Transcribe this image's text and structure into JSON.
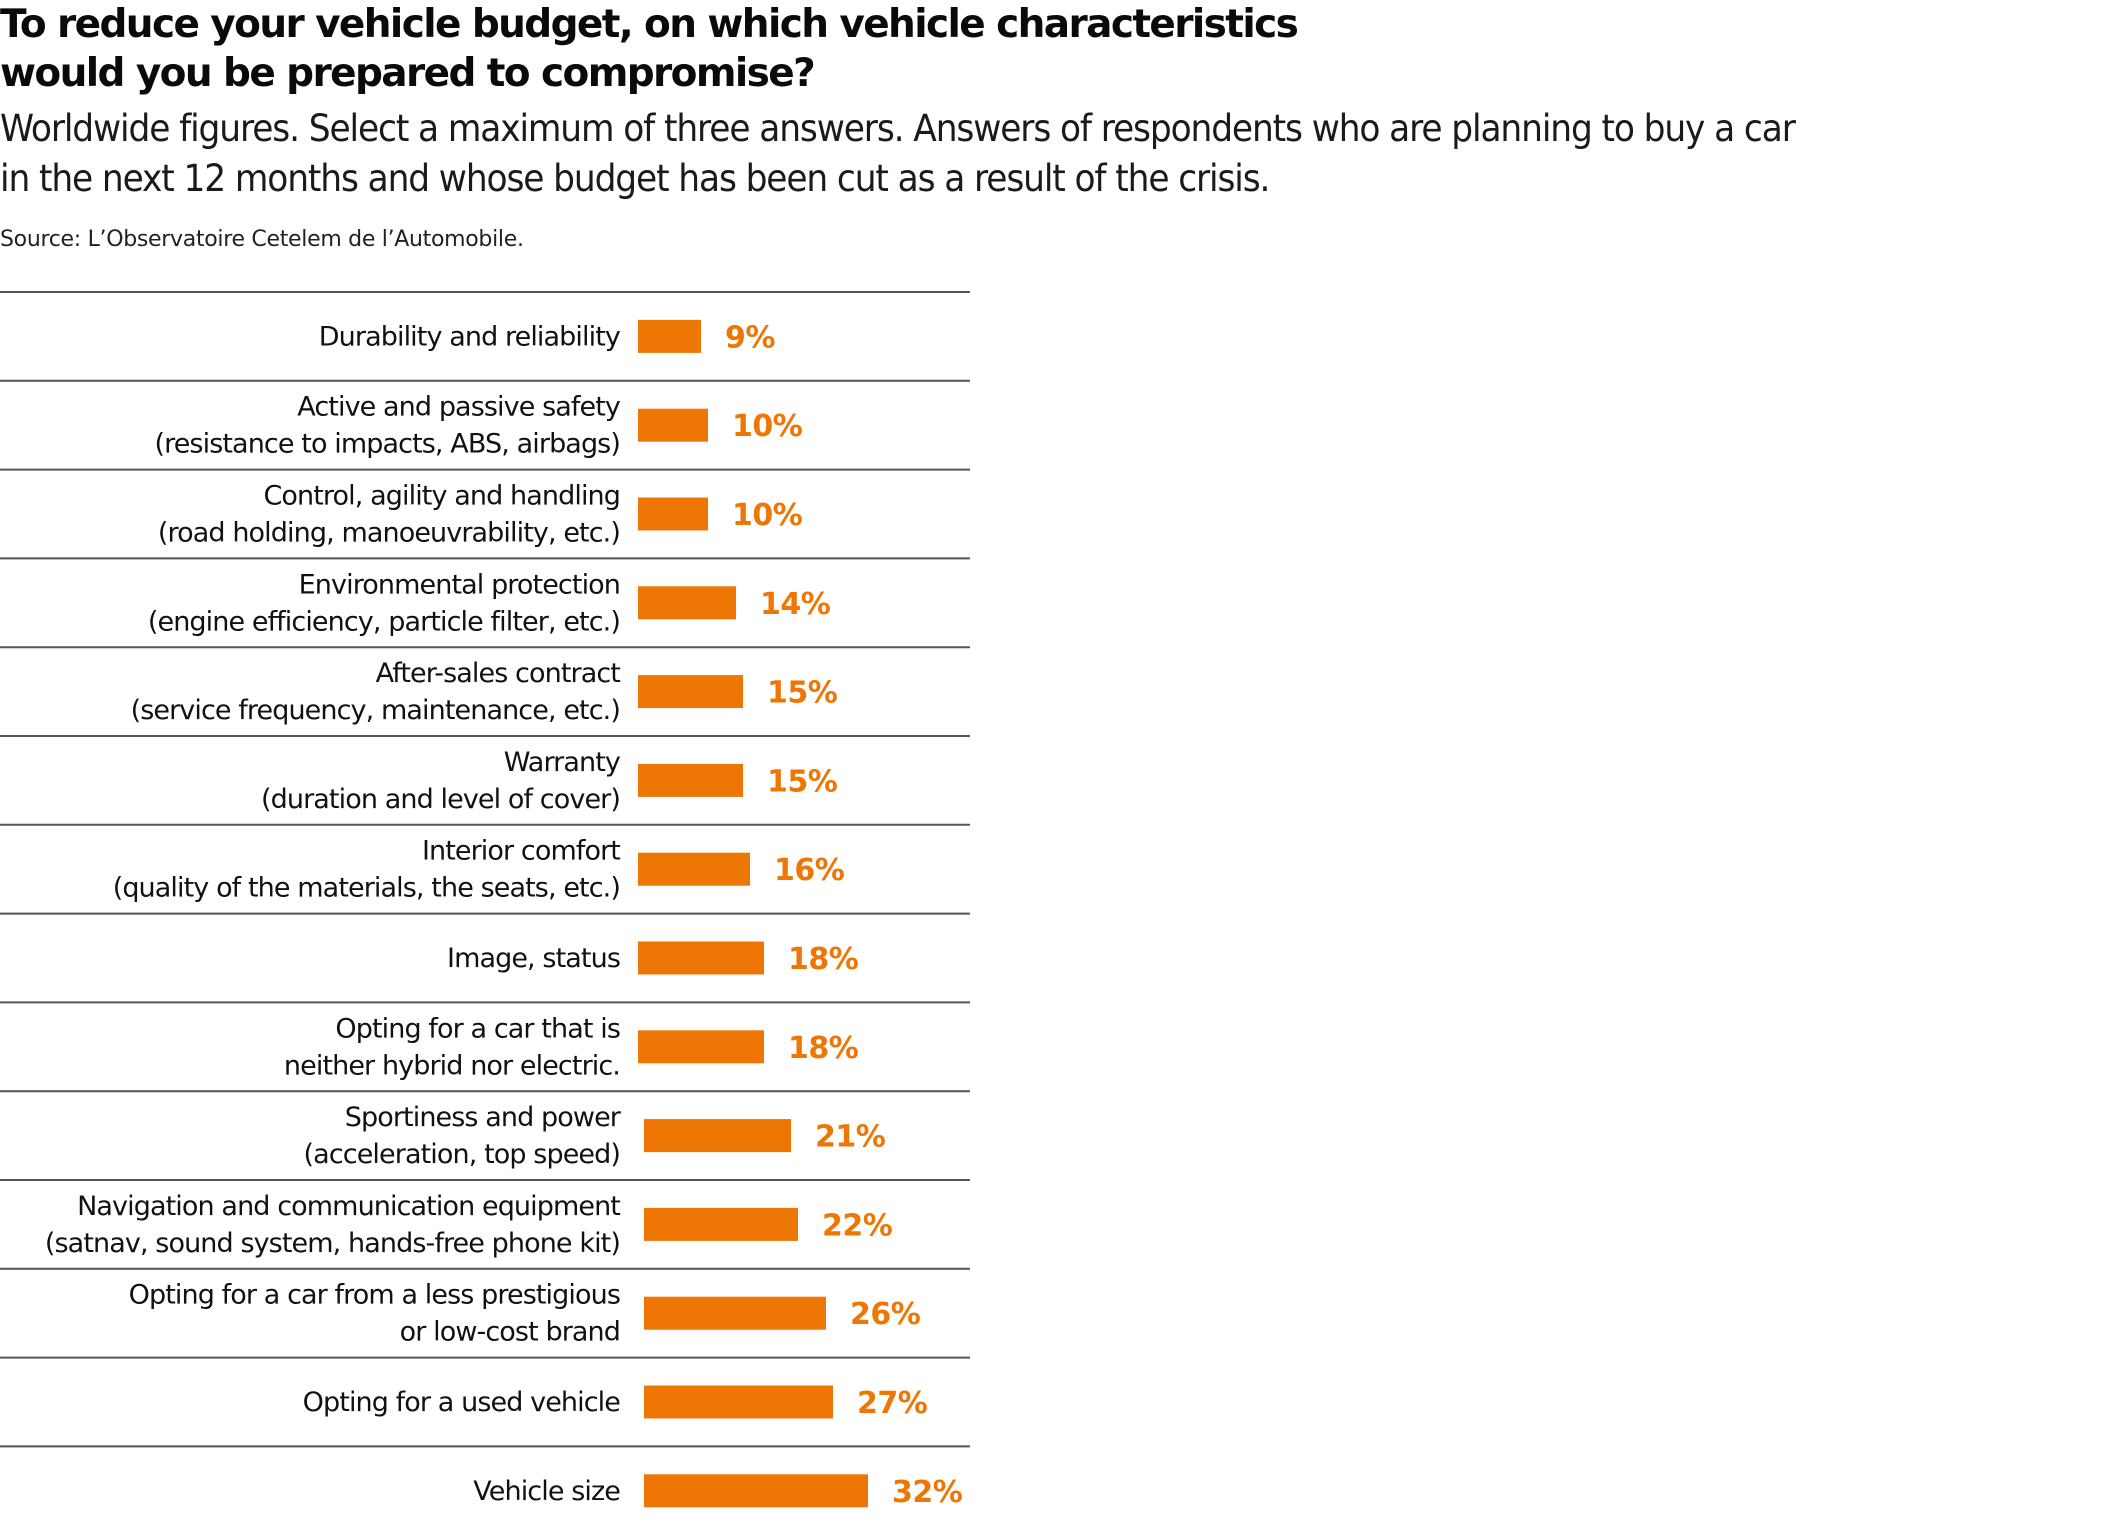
{
  "header": {
    "title_line1": "To reduce your vehicle budget, on which vehicle characteristics",
    "title_line2": "would you be prepared to compromise?",
    "subtitle_line1": "Worldwide figures. Select a maximum of three answers. Answers of respondents who are planning to buy a car",
    "subtitle_line2": "in the next 12 months and whose budget has been cut as a result of the crisis.",
    "source": "Source: L’Observatoire Cetelem de l’Automobile."
  },
  "colors": {
    "bar": "#ee7604",
    "value_text": "#ee7604",
    "rule": "#555555"
  },
  "chart_data": {
    "type": "bar",
    "orientation": "horizontal",
    "title": "To reduce your vehicle budget, on which vehicle characteristics would you be prepared to compromise?",
    "xlabel": "",
    "ylabel": "",
    "unit": "%",
    "grid": false,
    "legend": "none",
    "xlim": [
      0,
      32
    ],
    "categories": [
      [
        "Durability and reliability"
      ],
      [
        "Active and passive safety",
        "(resistance to impacts, ABS, airbags)"
      ],
      [
        "Control, agility and handling",
        "(road holding, manoeuvrability, etc.)"
      ],
      [
        "Environmental protection",
        "(engine efficiency, particle filter, etc.)"
      ],
      [
        "After-sales contract",
        "(service frequency, maintenance, etc.)"
      ],
      [
        "Warranty",
        "(duration and level of cover)"
      ],
      [
        "Interior comfort",
        "(quality of the materials, the seats, etc.)"
      ],
      [
        "Image, status"
      ],
      [
        "Opting for a car that is",
        "neither hybrid nor electric."
      ],
      [
        "Sportiness and power",
        "(acceleration, top speed)"
      ],
      [
        "Navigation and communication equipment",
        "(satnav, sound system, hands-free phone kit)"
      ],
      [
        "Opting for a car from a less prestigious",
        "or low-cost brand"
      ],
      [
        "Opting for a used vehicle"
      ],
      [
        "Vehicle size"
      ]
    ],
    "values": [
      9,
      10,
      10,
      14,
      15,
      15,
      16,
      18,
      18,
      21,
      22,
      26,
      27,
      32
    ],
    "value_labels": [
      "9%",
      "10%",
      "10%",
      "14%",
      "15%",
      "15%",
      "16%",
      "18%",
      "18%",
      "21%",
      "22%",
      "26%",
      "27%",
      "32%"
    ]
  }
}
